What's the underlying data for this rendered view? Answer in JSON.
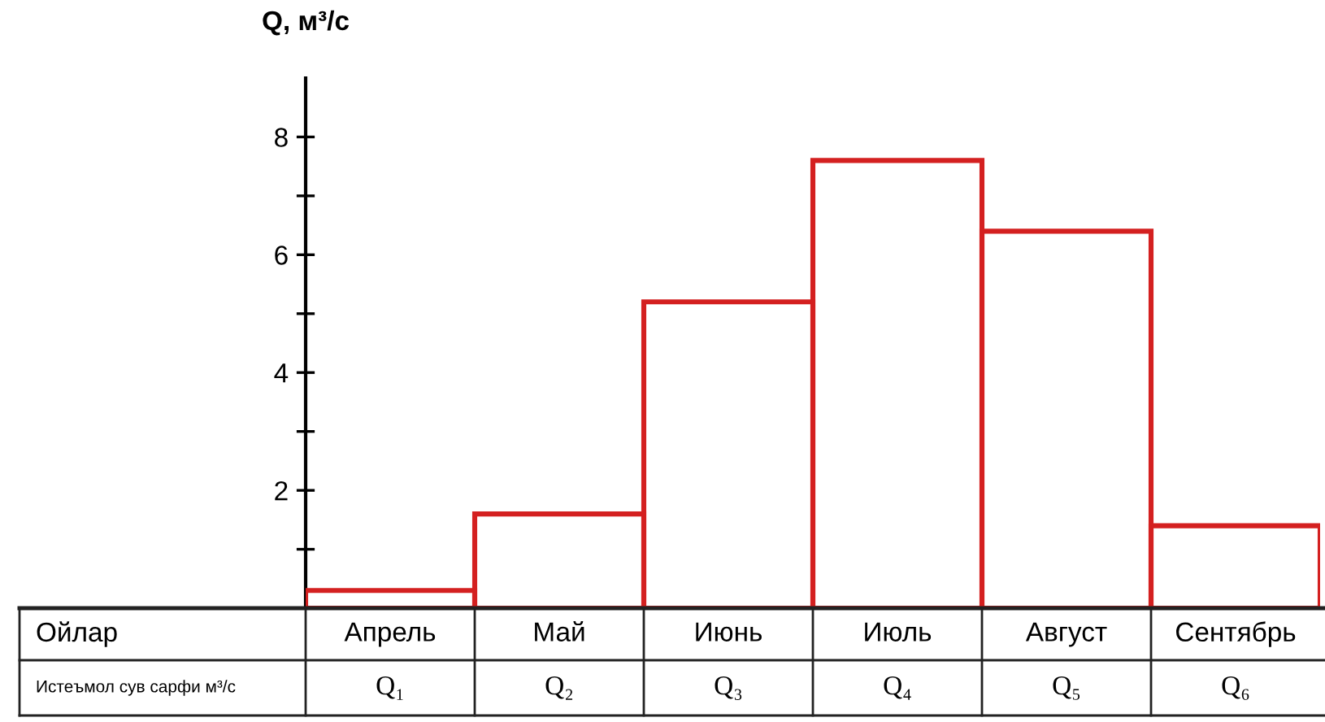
{
  "chart_data": {
    "type": "bar",
    "ylabel": "Q, м³/с",
    "categories": [
      "Апрель",
      "Май",
      "Июнь",
      "Июль",
      "Август",
      "Сентябрь"
    ],
    "values": [
      0.3,
      1.6,
      5.2,
      7.6,
      6.4,
      1.4
    ],
    "value_labels": [
      "Q₁",
      "Q₂",
      "Q₃",
      "Q₄",
      "Q₅",
      "Q₆"
    ],
    "color": "#d42020",
    "ylim": [
      0,
      9
    ],
    "yticks": [
      {
        "value": 1,
        "label": null
      },
      2,
      {
        "value": 3,
        "label": null
      },
      4,
      {
        "value": 5,
        "label": null
      },
      6,
      {
        "value": 7,
        "label": null
      },
      8
    ],
    "annotations": [
      "Ойлар",
      "Истеъмол сув сарфи м³/с"
    ],
    "grid": false,
    "legend": false
  }
}
